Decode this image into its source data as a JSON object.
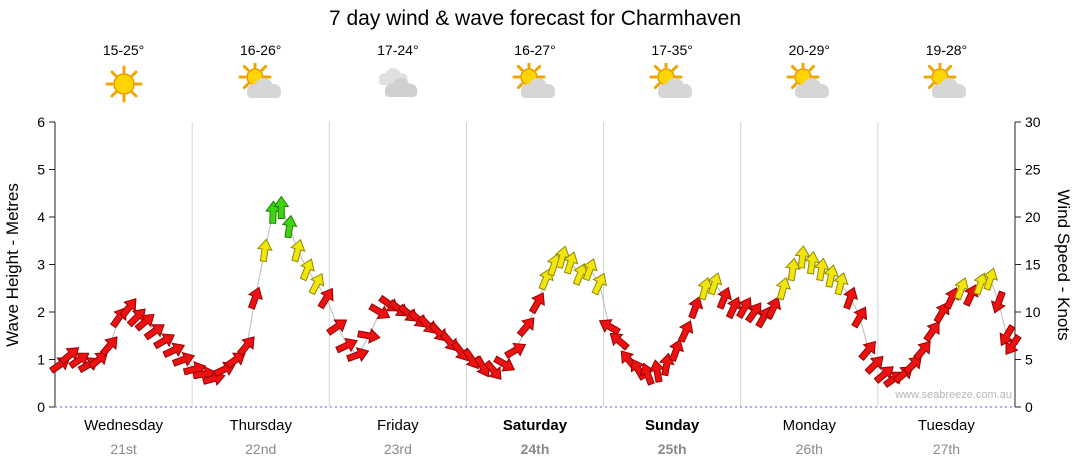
{
  "title": "7 day wind & wave forecast for Charmhaven",
  "watermark": "www.seabreeze.com.au",
  "days": [
    {
      "name": "Wednesday",
      "date": "21st",
      "temp": "15-25°",
      "icon": "sunny",
      "weekend": false
    },
    {
      "name": "Thursday",
      "date": "22nd",
      "temp": "16-26°",
      "icon": "partly-cloudy",
      "weekend": false
    },
    {
      "name": "Friday",
      "date": "23rd",
      "temp": "17-24°",
      "icon": "cloudy",
      "weekend": false
    },
    {
      "name": "Saturday",
      "date": "24th",
      "temp": "16-27°",
      "icon": "partly-cloudy",
      "weekend": true
    },
    {
      "name": "Sunday",
      "date": "25th",
      "temp": "17-35°",
      "icon": "partly-cloudy",
      "weekend": true
    },
    {
      "name": "Monday",
      "date": "26th",
      "temp": "20-29°",
      "icon": "partly-cloudy",
      "weekend": false
    },
    {
      "name": "Tuesday",
      "date": "27th",
      "temp": "19-28°",
      "icon": "partly-cloudy",
      "weekend": false
    }
  ],
  "chart_data": {
    "type": "scatter",
    "title": "7 day wind & wave forecast for Charmhaven",
    "left_axis": {
      "label": "Wave Height - Metres",
      "min": 0,
      "max": 6,
      "ticks": [
        0,
        1,
        2,
        3,
        4,
        5,
        6
      ]
    },
    "right_axis": {
      "label": "Wind Speed - Knots",
      "min": 0,
      "max": 30,
      "ticks": [
        0,
        5,
        10,
        15,
        20,
        25,
        30
      ]
    },
    "x_categories": [
      "Wednesday 21st",
      "Thursday 22nd",
      "Friday 23rd",
      "Saturday 24th",
      "Sunday 25th",
      "Monday 26th",
      "Tuesday 27th"
    ],
    "legend": "wind arrows colored by strength: red < 12 kn, yellow 12-17 kn, green 18+ kn",
    "speed_colors": {
      "green_min": 18,
      "yellow_min": 12,
      "green": {
        "fill": "#3fd312",
        "stroke": "#1e8000"
      },
      "yellow": {
        "fill": "#f2e50e",
        "stroke": "#8f8a00"
      },
      "red": {
        "fill": "#ec1212",
        "stroke": "#990000"
      }
    },
    "line_color": "#bbbbbb",
    "wind_points": [
      {
        "t": 0.04,
        "kn": 4.5,
        "dir": 55
      },
      {
        "t": 0.11,
        "kn": 5.5,
        "dir": 50
      },
      {
        "t": 0.18,
        "kn": 5,
        "dir": 55
      },
      {
        "t": 0.25,
        "kn": 4.5,
        "dir": 60
      },
      {
        "t": 0.32,
        "kn": 5,
        "dir": 50
      },
      {
        "t": 0.4,
        "kn": 6.5,
        "dir": 40
      },
      {
        "t": 0.47,
        "kn": 9.5,
        "dir": 35
      },
      {
        "t": 0.54,
        "kn": 10.5,
        "dir": 38
      },
      {
        "t": 0.6,
        "kn": 9.5,
        "dir": 45
      },
      {
        "t": 0.66,
        "kn": 9,
        "dir": 50
      },
      {
        "t": 0.73,
        "kn": 8,
        "dir": 55
      },
      {
        "t": 0.8,
        "kn": 7,
        "dir": 60
      },
      {
        "t": 0.87,
        "kn": 6,
        "dir": 65
      },
      {
        "t": 0.94,
        "kn": 5,
        "dir": 70
      },
      {
        "t": 1.02,
        "kn": 4,
        "dir": 75
      },
      {
        "t": 1.09,
        "kn": 3.5,
        "dir": 80
      },
      {
        "t": 1.16,
        "kn": 3,
        "dir": 75
      },
      {
        "t": 1.24,
        "kn": 4,
        "dir": 65
      },
      {
        "t": 1.32,
        "kn": 5,
        "dir": 55
      },
      {
        "t": 1.4,
        "kn": 6.5,
        "dir": 40
      },
      {
        "t": 1.46,
        "kn": 11.5,
        "dir": 20
      },
      {
        "t": 1.53,
        "kn": 16.5,
        "dir": 8
      },
      {
        "t": 1.59,
        "kn": 20.5,
        "dir": 2
      },
      {
        "t": 1.65,
        "kn": 21,
        "dir": 0
      },
      {
        "t": 1.71,
        "kn": 19,
        "dir": 8
      },
      {
        "t": 1.77,
        "kn": 16.5,
        "dir": 15
      },
      {
        "t": 1.84,
        "kn": 14.5,
        "dir": 22
      },
      {
        "t": 1.91,
        "kn": 13,
        "dir": 28
      },
      {
        "t": 1.98,
        "kn": 11.5,
        "dir": 32
      },
      {
        "t": 2.06,
        "kn": 8.5,
        "dir": 55
      },
      {
        "t": 2.13,
        "kn": 6.5,
        "dir": 65
      },
      {
        "t": 2.21,
        "kn": 5.5,
        "dir": 70
      },
      {
        "t": 2.29,
        "kn": 7.5,
        "dir": 100
      },
      {
        "t": 2.37,
        "kn": 10,
        "dir": 120
      },
      {
        "t": 2.44,
        "kn": 10.8,
        "dir": 125
      },
      {
        "t": 2.51,
        "kn": 10.3,
        "dir": 128
      },
      {
        "t": 2.58,
        "kn": 9.8,
        "dir": 130
      },
      {
        "t": 2.65,
        "kn": 9.2,
        "dir": 132
      },
      {
        "t": 2.72,
        "kn": 8.6,
        "dir": 135
      },
      {
        "t": 2.8,
        "kn": 7.8,
        "dir": 138
      },
      {
        "t": 2.88,
        "kn": 6.8,
        "dir": 140
      },
      {
        "t": 2.96,
        "kn": 5.8,
        "dir": 142
      },
      {
        "t": 3.04,
        "kn": 5,
        "dir": 145
      },
      {
        "t": 3.12,
        "kn": 4.2,
        "dir": 150
      },
      {
        "t": 3.2,
        "kn": 3.8,
        "dir": 140
      },
      {
        "t": 3.28,
        "kn": 4.5,
        "dir": 120
      },
      {
        "t": 3.36,
        "kn": 6,
        "dir": 60
      },
      {
        "t": 3.44,
        "kn": 8.5,
        "dir": 40
      },
      {
        "t": 3.52,
        "kn": 11,
        "dir": 30
      },
      {
        "t": 3.58,
        "kn": 13.5,
        "dir": 22
      },
      {
        "t": 3.64,
        "kn": 15,
        "dir": 18
      },
      {
        "t": 3.7,
        "kn": 15.8,
        "dir": 15
      },
      {
        "t": 3.76,
        "kn": 15.2,
        "dir": 18
      },
      {
        "t": 3.83,
        "kn": 14,
        "dir": 22
      },
      {
        "t": 3.9,
        "kn": 14.5,
        "dir": 20
      },
      {
        "t": 3.97,
        "kn": 13,
        "dir": 25
      },
      {
        "t": 4.04,
        "kn": 8.5,
        "dir": 300
      },
      {
        "t": 4.11,
        "kn": 7,
        "dir": 310
      },
      {
        "t": 4.18,
        "kn": 5,
        "dir": 320
      },
      {
        "t": 4.25,
        "kn": 4,
        "dir": 330
      },
      {
        "t": 4.32,
        "kn": 3.5,
        "dir": 340
      },
      {
        "t": 4.39,
        "kn": 3.8,
        "dir": 350
      },
      {
        "t": 4.46,
        "kn": 4.5,
        "dir": 10
      },
      {
        "t": 4.53,
        "kn": 6,
        "dir": 20
      },
      {
        "t": 4.6,
        "kn": 8,
        "dir": 25
      },
      {
        "t": 4.67,
        "kn": 10.5,
        "dir": 20
      },
      {
        "t": 4.74,
        "kn": 12.5,
        "dir": 15
      },
      {
        "t": 4.81,
        "kn": 13,
        "dir": 18
      },
      {
        "t": 4.88,
        "kn": 11.5,
        "dir": 22
      },
      {
        "t": 4.95,
        "kn": 10.5,
        "dir": 25
      },
      {
        "t": 5.03,
        "kn": 10.5,
        "dir": 30
      },
      {
        "t": 5.1,
        "kn": 10,
        "dir": 35
      },
      {
        "t": 5.17,
        "kn": 9.5,
        "dir": 30
      },
      {
        "t": 5.24,
        "kn": 10.5,
        "dir": 25
      },
      {
        "t": 5.31,
        "kn": 12.5,
        "dir": 15
      },
      {
        "t": 5.38,
        "kn": 14.5,
        "dir": 8
      },
      {
        "t": 5.45,
        "kn": 15.8,
        "dir": 5
      },
      {
        "t": 5.52,
        "kn": 15.2,
        "dir": 8
      },
      {
        "t": 5.59,
        "kn": 14.5,
        "dir": 10
      },
      {
        "t": 5.66,
        "kn": 13.8,
        "dir": 12
      },
      {
        "t": 5.73,
        "kn": 13,
        "dir": 15
      },
      {
        "t": 5.8,
        "kn": 11.5,
        "dir": 20
      },
      {
        "t": 5.87,
        "kn": 9.5,
        "dir": 30
      },
      {
        "t": 5.93,
        "kn": 6,
        "dir": 40
      },
      {
        "t": 5.98,
        "kn": 4.5,
        "dir": 45
      },
      {
        "t": 6.05,
        "kn": 3.5,
        "dir": 50
      },
      {
        "t": 6.12,
        "kn": 3,
        "dir": 55
      },
      {
        "t": 6.19,
        "kn": 3.5,
        "dir": 50
      },
      {
        "t": 6.26,
        "kn": 4.5,
        "dir": 45
      },
      {
        "t": 6.33,
        "kn": 6,
        "dir": 40
      },
      {
        "t": 6.4,
        "kn": 8,
        "dir": 35
      },
      {
        "t": 6.47,
        "kn": 10,
        "dir": 30
      },
      {
        "t": 6.54,
        "kn": 11.5,
        "dir": 25
      },
      {
        "t": 6.61,
        "kn": 12.5,
        "dir": 20
      },
      {
        "t": 6.68,
        "kn": 11.8,
        "dir": 25
      },
      {
        "t": 6.75,
        "kn": 13,
        "dir": 20
      },
      {
        "t": 6.82,
        "kn": 13.5,
        "dir": 18
      },
      {
        "t": 6.88,
        "kn": 11,
        "dir": 200
      },
      {
        "t": 6.94,
        "kn": 7.5,
        "dir": 210
      },
      {
        "t": 6.98,
        "kn": 6.5,
        "dir": 215
      }
    ]
  }
}
